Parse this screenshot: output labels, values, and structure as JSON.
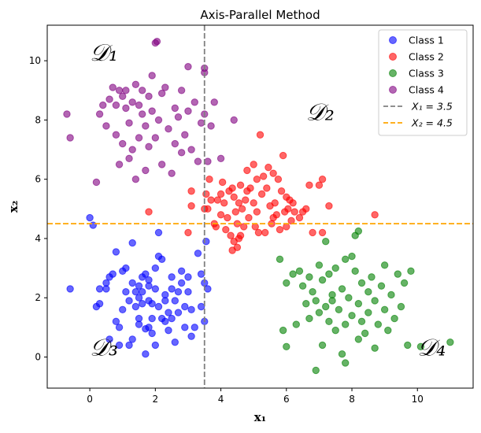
{
  "chart_data": {
    "type": "scatter",
    "title": "Axis-Parallel Method",
    "xlabel": "x₁",
    "ylabel": "x₂",
    "xlim": [
      -1.3,
      11.7
    ],
    "ylim": [
      -1.05,
      11.2
    ],
    "xticks": [
      0,
      2,
      4,
      6,
      8,
      10
    ],
    "yticks": [
      0,
      2,
      4,
      6,
      8,
      10
    ],
    "grid": false,
    "legend_position": "top-right",
    "region_labels": [
      {
        "text": "𝒟₁",
        "x": 0.0,
        "y": 10.0
      },
      {
        "text": "𝒟₂",
        "x": 6.6,
        "y": 8.0
      },
      {
        "text": "𝒟₃",
        "x": 0.0,
        "y": 0.05
      },
      {
        "text": "𝒟₄",
        "x": 10.0,
        "y": 0.05
      }
    ],
    "lines": [
      {
        "name": "X₁ = 3.5",
        "orientation": "vertical",
        "value": 3.5,
        "color": "#808080",
        "dash": "dashed"
      },
      {
        "name": "X₂ = 4.5",
        "orientation": "horizontal",
        "value": 4.5,
        "color": "#ffa500",
        "dash": "dashed"
      }
    ],
    "series": [
      {
        "name": "Class 1",
        "color": "#0000ff",
        "points": [
          [
            -0.6,
            2.3
          ],
          [
            0.0,
            4.7
          ],
          [
            0.1,
            4.45
          ],
          [
            0.2,
            1.7
          ],
          [
            0.3,
            2.3
          ],
          [
            0.3,
            1.8
          ],
          [
            0.5,
            2.5
          ],
          [
            0.5,
            2.3
          ],
          [
            0.6,
            0.6
          ],
          [
            0.6,
            2.7
          ],
          [
            0.7,
            2.8
          ],
          [
            0.8,
            3.55
          ],
          [
            0.8,
            1.2
          ],
          [
            0.9,
            1.0
          ],
          [
            0.9,
            0.4
          ],
          [
            1.0,
            1.6
          ],
          [
            1.0,
            2.9
          ],
          [
            1.1,
            3.0
          ],
          [
            1.1,
            2.2
          ],
          [
            1.2,
            1.9
          ],
          [
            1.2,
            0.4
          ],
          [
            1.3,
            3.85
          ],
          [
            1.3,
            2.5
          ],
          [
            1.3,
            0.6
          ],
          [
            1.4,
            2.2
          ],
          [
            1.4,
            1.7
          ],
          [
            1.5,
            1.3
          ],
          [
            1.5,
            2.0
          ],
          [
            1.5,
            2.4
          ],
          [
            1.5,
            1.1
          ],
          [
            1.6,
            2.7
          ],
          [
            1.6,
            2.2
          ],
          [
            1.6,
            1.8
          ],
          [
            1.7,
            0.95
          ],
          [
            1.7,
            0.1
          ],
          [
            1.7,
            2.8
          ],
          [
            1.8,
            2.6
          ],
          [
            1.8,
            1.9
          ],
          [
            1.8,
            2.4
          ],
          [
            1.8,
            1.0
          ],
          [
            1.9,
            0.8
          ],
          [
            1.9,
            1.3
          ],
          [
            1.9,
            1.8
          ],
          [
            2.0,
            3.0
          ],
          [
            2.0,
            2.3
          ],
          [
            2.0,
            0.4
          ],
          [
            2.1,
            1.7
          ],
          [
            2.1,
            3.4
          ],
          [
            2.1,
            4.2
          ],
          [
            2.2,
            3.3
          ],
          [
            2.2,
            1.3
          ],
          [
            2.3,
            1.2
          ],
          [
            2.3,
            1.9
          ],
          [
            2.3,
            2.1
          ],
          [
            2.4,
            1.5
          ],
          [
            2.4,
            0.9
          ],
          [
            2.5,
            1.3
          ],
          [
            2.5,
            2.7
          ],
          [
            2.5,
            2.3
          ],
          [
            2.6,
            0.5
          ],
          [
            2.6,
            1.9
          ],
          [
            2.7,
            2.2
          ],
          [
            2.7,
            1.5
          ],
          [
            2.8,
            2.9
          ],
          [
            2.8,
            2.5
          ],
          [
            2.9,
            1.0
          ],
          [
            2.9,
            1.7
          ],
          [
            3.0,
            2.7
          ],
          [
            3.0,
            2.2
          ],
          [
            3.1,
            0.7
          ],
          [
            3.1,
            1.6
          ],
          [
            3.2,
            1.0
          ],
          [
            3.3,
            3.5
          ],
          [
            3.4,
            2.8
          ],
          [
            3.4,
            1.7
          ],
          [
            3.5,
            1.2
          ],
          [
            3.55,
            3.9
          ],
          [
            3.5,
            2.5
          ],
          [
            3.6,
            2.3
          ]
        ]
      },
      {
        "name": "Class 2",
        "color": "#ff0000",
        "points": [
          [
            1.8,
            4.9
          ],
          [
            3.0,
            4.2
          ],
          [
            3.1,
            5.1
          ],
          [
            3.1,
            5.6
          ],
          [
            3.5,
            5.0
          ],
          [
            3.55,
            5.5
          ],
          [
            3.6,
            5.0
          ],
          [
            3.65,
            6.0
          ],
          [
            3.7,
            5.3
          ],
          [
            3.8,
            4.5
          ],
          [
            3.85,
            4.4
          ],
          [
            3.9,
            5.3
          ],
          [
            4.0,
            5.5
          ],
          [
            4.0,
            4.8
          ],
          [
            4.05,
            5.9
          ],
          [
            4.1,
            5.2
          ],
          [
            4.15,
            4.3
          ],
          [
            4.2,
            4.7
          ],
          [
            4.25,
            5.6
          ],
          [
            4.3,
            4.1
          ],
          [
            4.35,
            3.6
          ],
          [
            4.35,
            5.7
          ],
          [
            4.4,
            3.9
          ],
          [
            4.4,
            5.4
          ],
          [
            4.45,
            4.9
          ],
          [
            4.5,
            4.5
          ],
          [
            4.5,
            3.7
          ],
          [
            4.55,
            4.0
          ],
          [
            4.55,
            5.2
          ],
          [
            4.6,
            4.1
          ],
          [
            4.6,
            5.8
          ],
          [
            4.65,
            5.0
          ],
          [
            4.7,
            4.4
          ],
          [
            4.75,
            5.3
          ],
          [
            4.8,
            6.3
          ],
          [
            4.8,
            5.6
          ],
          [
            4.85,
            4.7
          ],
          [
            4.9,
            5.7
          ],
          [
            5.0,
            6.5
          ],
          [
            5.0,
            5.2
          ],
          [
            5.05,
            4.4
          ],
          [
            5.1,
            4.9
          ],
          [
            5.1,
            6.0
          ],
          [
            5.15,
            4.2
          ],
          [
            5.2,
            7.5
          ],
          [
            5.25,
            5.5
          ],
          [
            5.3,
            6.1
          ],
          [
            5.35,
            4.2
          ],
          [
            5.4,
            5.7
          ],
          [
            5.45,
            6.4
          ],
          [
            5.5,
            5.1
          ],
          [
            5.55,
            4.5
          ],
          [
            5.6,
            4.7
          ],
          [
            5.6,
            6.2
          ],
          [
            5.65,
            5.2
          ],
          [
            5.7,
            4.8
          ],
          [
            5.75,
            6.0
          ],
          [
            5.8,
            4.3
          ],
          [
            5.85,
            5.6
          ],
          [
            5.9,
            6.8
          ],
          [
            5.95,
            4.9
          ],
          [
            6.0,
            4.4
          ],
          [
            6.0,
            5.4
          ],
          [
            6.05,
            5.0
          ],
          [
            6.1,
            5.3
          ],
          [
            6.15,
            4.6
          ],
          [
            6.2,
            5.2
          ],
          [
            6.25,
            4.9
          ],
          [
            6.4,
            4.7
          ],
          [
            6.5,
            4.9
          ],
          [
            6.6,
            5.0
          ],
          [
            6.7,
            5.8
          ],
          [
            6.8,
            4.2
          ],
          [
            7.0,
            5.8
          ],
          [
            7.1,
            6.0
          ],
          [
            7.1,
            4.2
          ],
          [
            7.3,
            5.1
          ],
          [
            8.7,
            4.8
          ]
        ]
      },
      {
        "name": "Class 3",
        "color": "#008000",
        "points": [
          [
            5.8,
            3.3
          ],
          [
            5.9,
            0.9
          ],
          [
            6.0,
            2.5
          ],
          [
            6.0,
            0.35
          ],
          [
            6.3,
            1.1
          ],
          [
            6.4,
            2.9
          ],
          [
            6.5,
            2.4
          ],
          [
            6.6,
            1.8
          ],
          [
            6.7,
            2.7
          ],
          [
            6.7,
            1.3
          ],
          [
            6.8,
            2.2
          ],
          [
            6.9,
            1.9
          ],
          [
            6.9,
            -0.45
          ],
          [
            7.0,
            1.5
          ],
          [
            7.0,
            3.1
          ],
          [
            7.1,
            2.6
          ],
          [
            7.1,
            0.4
          ],
          [
            7.2,
            1.7
          ],
          [
            7.3,
            2.8
          ],
          [
            7.3,
            1.2
          ],
          [
            7.4,
            2.1
          ],
          [
            7.4,
            1.9
          ],
          [
            7.5,
            3.0
          ],
          [
            7.5,
            0.9
          ],
          [
            7.6,
            1.6
          ],
          [
            7.7,
            2.3
          ],
          [
            7.7,
            0.1
          ],
          [
            7.8,
            1.1
          ],
          [
            7.8,
            3.3
          ],
          [
            7.9,
            2.0
          ],
          [
            8.0,
            1.4
          ],
          [
            8.0,
            3.4
          ],
          [
            8.1,
            2.9
          ],
          [
            8.2,
            1.8
          ],
          [
            8.2,
            0.6
          ],
          [
            8.3,
            2.5
          ],
          [
            8.3,
            1.2
          ],
          [
            8.4,
            0.8
          ],
          [
            8.5,
            2.2
          ],
          [
            8.5,
            1.5
          ],
          [
            8.6,
            2.7
          ],
          [
            8.7,
            1.9
          ],
          [
            8.7,
            0.3
          ],
          [
            8.8,
            1.1
          ],
          [
            8.9,
            2.4
          ],
          [
            9.0,
            3.1
          ],
          [
            9.0,
            1.6
          ],
          [
            9.1,
            0.9
          ],
          [
            9.2,
            2.1
          ],
          [
            9.3,
            1.3
          ],
          [
            9.4,
            2.8
          ],
          [
            9.5,
            1.7
          ],
          [
            9.6,
            2.5
          ],
          [
            9.7,
            0.4
          ],
          [
            9.8,
            2.9
          ],
          [
            10.1,
            0.35
          ],
          [
            7.8,
            -0.2
          ],
          [
            7.2,
            3.9
          ],
          [
            8.1,
            4.1
          ],
          [
            8.2,
            4.25
          ],
          [
            11.0,
            0.5
          ],
          [
            6.2,
            2.8
          ]
        ]
      },
      {
        "name": "Class 4",
        "color": "#800080",
        "points": [
          [
            -0.7,
            8.2
          ],
          [
            -0.6,
            7.4
          ],
          [
            0.2,
            5.9
          ],
          [
            0.3,
            8.2
          ],
          [
            0.4,
            8.5
          ],
          [
            0.5,
            7.8
          ],
          [
            0.6,
            8.7
          ],
          [
            0.7,
            9.1
          ],
          [
            0.8,
            8.5
          ],
          [
            0.8,
            7.5
          ],
          [
            0.9,
            9.0
          ],
          [
            0.9,
            6.5
          ],
          [
            1.0,
            8.8
          ],
          [
            1.0,
            7.2
          ],
          [
            1.1,
            8.4
          ],
          [
            1.1,
            9.0
          ],
          [
            1.2,
            7.9
          ],
          [
            1.2,
            6.7
          ],
          [
            1.3,
            8.6
          ],
          [
            1.3,
            7.0
          ],
          [
            1.4,
            9.2
          ],
          [
            1.4,
            6.0
          ],
          [
            1.5,
            8.5
          ],
          [
            1.5,
            7.4
          ],
          [
            1.6,
            8.2
          ],
          [
            1.6,
            9.0
          ],
          [
            1.7,
            6.3
          ],
          [
            1.7,
            7.8
          ],
          [
            1.8,
            8.8
          ],
          [
            1.8,
            7.1
          ],
          [
            1.9,
            8.3
          ],
          [
            1.9,
            9.5
          ],
          [
            2.0,
            10.6
          ],
          [
            2.0,
            7.4
          ],
          [
            2.1,
            8.0
          ],
          [
            2.2,
            8.9
          ],
          [
            2.2,
            6.5
          ],
          [
            2.3,
            9.1
          ],
          [
            2.4,
            7.7
          ],
          [
            2.5,
            6.2
          ],
          [
            2.6,
            8.4
          ],
          [
            2.6,
            7.2
          ],
          [
            2.7,
            8.1
          ],
          [
            2.8,
            9.0
          ],
          [
            2.8,
            6.9
          ],
          [
            2.9,
            7.5
          ],
          [
            3.0,
            8.3
          ],
          [
            3.0,
            9.8
          ],
          [
            3.1,
            7.0
          ],
          [
            3.2,
            8.6
          ],
          [
            3.3,
            6.6
          ],
          [
            3.4,
            7.9
          ],
          [
            3.5,
            9.6
          ],
          [
            3.5,
            8.2
          ],
          [
            3.6,
            6.6
          ],
          [
            3.7,
            7.8
          ],
          [
            3.8,
            8.6
          ],
          [
            4.0,
            6.7
          ],
          [
            4.4,
            8.0
          ],
          [
            2.05,
            10.65
          ],
          [
            3.5,
            9.75
          ]
        ]
      }
    ]
  }
}
